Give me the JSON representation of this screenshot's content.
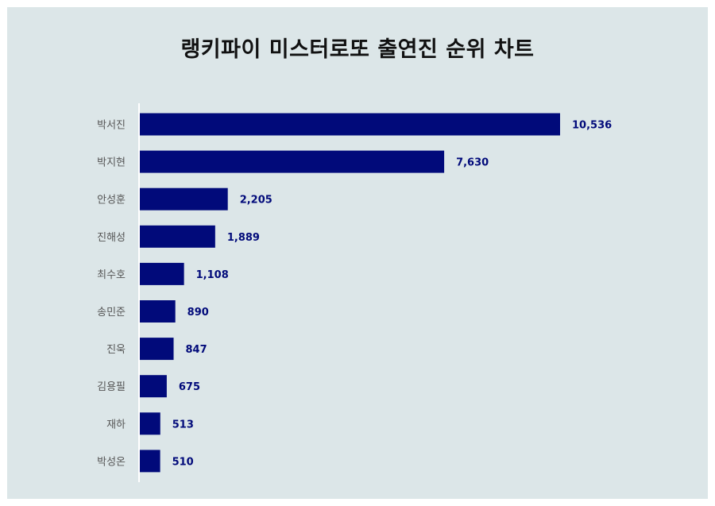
{
  "title": "랭키파이 미스터로또 출연진 순위 차트",
  "colors": {
    "background": "#dce6e8",
    "bar": "#010a7a",
    "value_label": "#010a7a",
    "axis_line": "#ffffff"
  },
  "chart_data": {
    "type": "bar",
    "orientation": "horizontal",
    "title": "랭키파이 미스터로또 출연진 순위 차트",
    "categories": [
      "박서진",
      "박지현",
      "안성훈",
      "진해성",
      "최수호",
      "송민준",
      "진욱",
      "김용필",
      "재하",
      "박성온"
    ],
    "values": [
      10536,
      7630,
      2205,
      1889,
      1108,
      890,
      847,
      675,
      513,
      510
    ],
    "value_labels": [
      "10,536",
      "7,630",
      "2,205",
      "1,889",
      "1,108",
      "890",
      "847",
      "675",
      "513",
      "510"
    ],
    "xlim": [
      0,
      10536
    ],
    "grid": false,
    "legend": "none"
  }
}
